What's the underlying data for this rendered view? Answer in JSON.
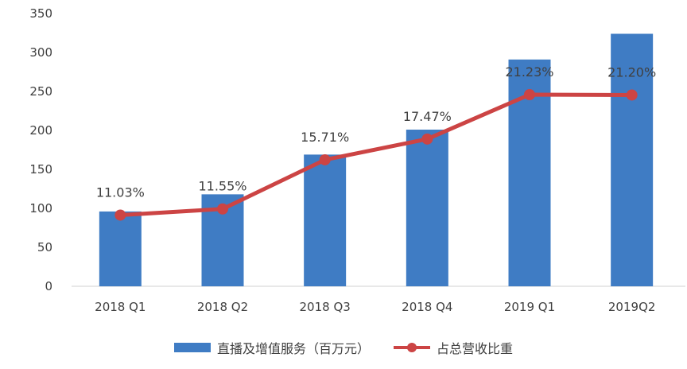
{
  "chart_data": {
    "type": "bar",
    "categories": [
      "2018 Q1",
      "2018 Q2",
      "2018 Q3",
      "2018 Q4",
      "2019 Q1",
      "2019Q2"
    ],
    "ylim": [
      0,
      350
    ],
    "yticks": [
      0,
      50,
      100,
      150,
      200,
      250,
      300,
      350
    ],
    "grid": false,
    "legend_position": "bottom",
    "series": [
      {
        "name": "直播及增值服务（百万元）",
        "type": "bar",
        "color": "#3f7cc4",
        "values": [
          96,
          118,
          169,
          201,
          291,
          324
        ]
      },
      {
        "name": "占总营收比重",
        "type": "line",
        "color": "#cc4444",
        "values": [
          11.03,
          11.55,
          15.71,
          17.47,
          21.23,
          21.2
        ],
        "labels": [
          "11.03%",
          "11.55%",
          "15.71%",
          "17.47%",
          "21.23%",
          "21.20%"
        ],
        "secondary_axis_hidden": true
      }
    ]
  }
}
